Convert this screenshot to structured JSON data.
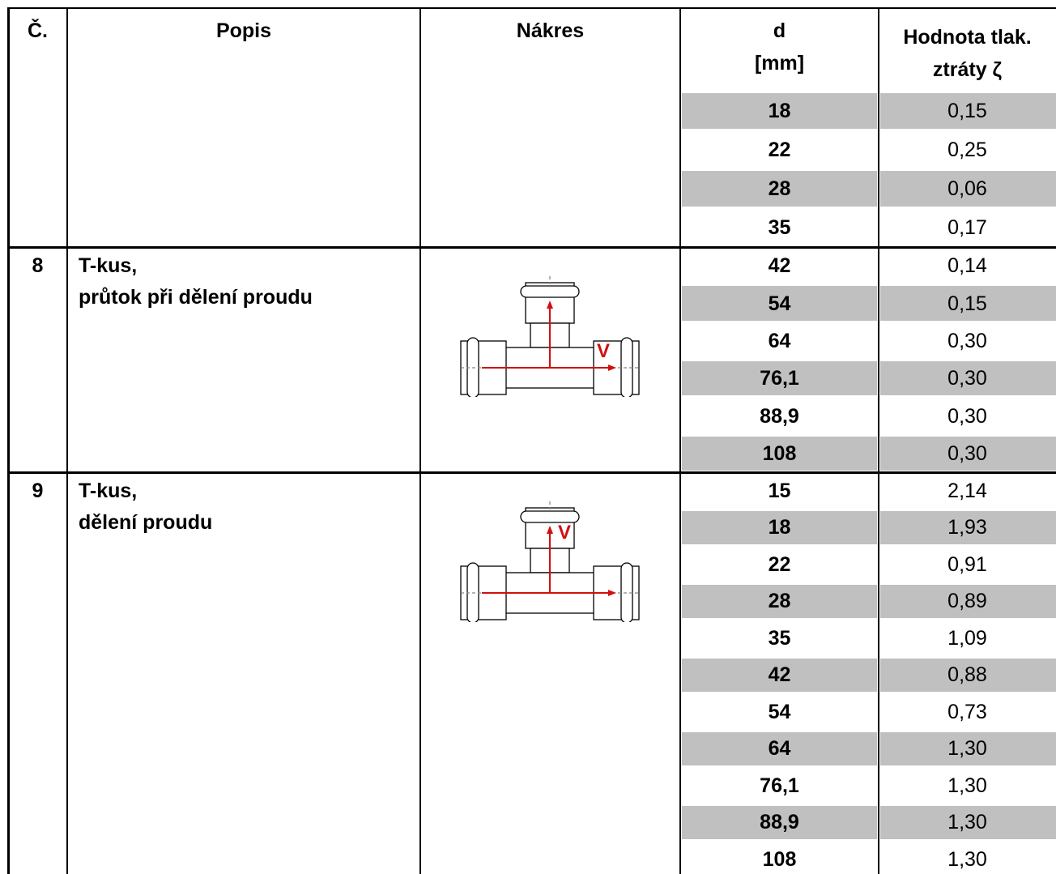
{
  "table": {
    "header": {
      "number": "Č.",
      "description": "Popis",
      "drawing": "Nákres",
      "d": [
        "d",
        "[mm]"
      ],
      "loss": [
        "Hodnota tlak.",
        "ztráty ζ"
      ]
    },
    "groups": [
      {
        "rows": [
          {
            "d": "18",
            "zeta": "0,15"
          },
          {
            "d": "22",
            "zeta": "0,25"
          },
          {
            "d": "28",
            "zeta": "0,06"
          },
          {
            "d": "35",
            "zeta": "0,17"
          }
        ]
      },
      {
        "number": "8",
        "description": [
          "T-kus,",
          "průtok při dělení proudu"
        ],
        "drawing_label": "V",
        "rows": [
          {
            "d": "42",
            "zeta": "0,14"
          },
          {
            "d": "54",
            "zeta": "0,15"
          },
          {
            "d": "64",
            "zeta": "0,30"
          },
          {
            "d": "76,1",
            "zeta": "0,30"
          },
          {
            "d": "88,9",
            "zeta": "0,30"
          },
          {
            "d": "108",
            "zeta": "0,30"
          }
        ]
      },
      {
        "number": "9",
        "description": [
          "T-kus,",
          "dělení proudu"
        ],
        "drawing_label": "V",
        "rows": [
          {
            "d": "15",
            "zeta": "2,14"
          },
          {
            "d": "18",
            "zeta": "1,93"
          },
          {
            "d": "22",
            "zeta": "0,91"
          },
          {
            "d": "28",
            "zeta": "0,89"
          },
          {
            "d": "35",
            "zeta": "1,09"
          },
          {
            "d": "42",
            "zeta": "0,88"
          },
          {
            "d": "54",
            "zeta": "0,73"
          },
          {
            "d": "64",
            "zeta": "1,30"
          },
          {
            "d": "76,1",
            "zeta": "1,30"
          },
          {
            "d": "88,9",
            "zeta": "1,30"
          },
          {
            "d": "108",
            "zeta": "1,30"
          }
        ]
      }
    ]
  }
}
